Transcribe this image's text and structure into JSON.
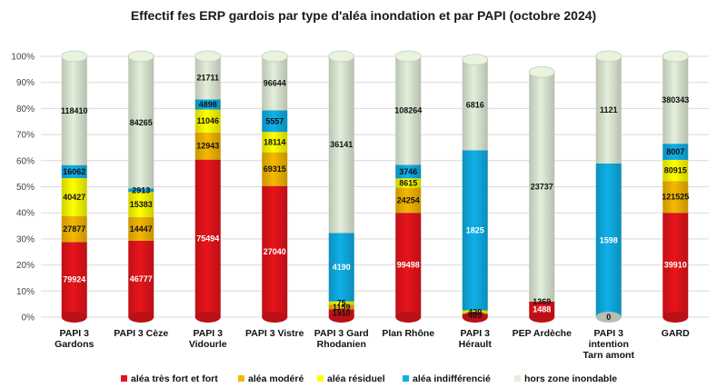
{
  "chart_data": {
    "type": "bar",
    "stacked": "percent",
    "title": "Effectif fes ERP gardois par type d'aléa inondation et par PAPI (octobre 2024)",
    "categories": [
      [
        "PAPI 3",
        "Gardons"
      ],
      [
        "PAPI 3 Cèze"
      ],
      [
        "PAPI 3",
        "Vidourle"
      ],
      [
        "PAPI 3 Vistre"
      ],
      [
        "PAPI 3 Gard",
        "Rhodanien"
      ],
      [
        "Plan Rhône"
      ],
      [
        "PAPI 3",
        "Hérault"
      ],
      [
        "PEP Ardèche"
      ],
      [
        "PAPI 3",
        "intention",
        "Tarn amont"
      ],
      [
        "GARD"
      ]
    ],
    "y_ticks": [
      "0%",
      "10%",
      "20%",
      "30%",
      "40%",
      "50%",
      "60%",
      "70%",
      "80%",
      "90%",
      "100%"
    ],
    "ylim": [
      0,
      100
    ],
    "series": [
      {
        "name": "aléa très fort et fort",
        "color": "#e8141b",
        "labels": [
          "79924",
          "46777",
          "75494",
          "27040",
          "1910",
          "99498",
          "405",
          "1488",
          "0",
          "39910"
        ],
        "values_pct": [
          28.8,
          29.3,
          60.4,
          50.3,
          3.0,
          40.0,
          1.3,
          6.0,
          0,
          40.0
        ]
      },
      {
        "name": "aléa modéré",
        "color": "#f5b800",
        "labels": [
          "27877",
          "14447",
          "12943",
          "69315",
          "1159",
          "24254",
          "",
          "",
          "",
          "121525"
        ],
        "values_pct": [
          10.0,
          9.1,
          10.4,
          12.9,
          1.8,
          9.7,
          0,
          0,
          0,
          12.2
        ]
      },
      {
        "name": "aléa résiduel",
        "color": "#ffff00",
        "labels": [
          "40427",
          "15383",
          "11046",
          "18114",
          "75",
          "8615",
          "420",
          "",
          "",
          "80915"
        ],
        "values_pct": [
          14.5,
          9.6,
          8.8,
          7.8,
          1.2,
          3.5,
          1.3,
          0,
          0,
          8.1
        ]
      },
      {
        "name": "aléa indifférencié",
        "color": "#0fb0e8",
        "labels": [
          "16062",
          "2913",
          "4898",
          "5557",
          "4190",
          "3746",
          "1825",
          "1369",
          "1598",
          "8007"
        ],
        "values_pct": [
          5.0,
          1.3,
          3.9,
          8.3,
          26.3,
          5.2,
          61.4,
          0,
          58.9,
          6.2
        ]
      },
      {
        "name": "hors zone inondable",
        "color": "#e3efda",
        "labels": [
          "118410",
          "84265",
          "21711",
          "96644",
          "36141",
          "108264",
          "6816",
          "23737",
          "1121",
          "380343"
        ],
        "values_pct": [
          41.7,
          50.7,
          16.5,
          20.7,
          67.7,
          41.6,
          34.7,
          88.0,
          41.1,
          33.5
        ]
      }
    ],
    "legend_position": "bottom",
    "grid": true
  }
}
